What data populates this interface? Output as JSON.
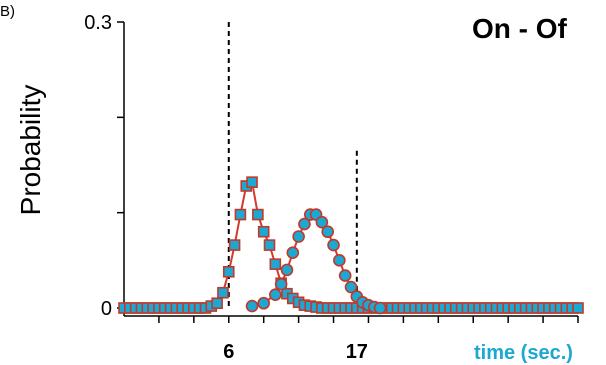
{
  "panel_label": "B)",
  "chart_data": {
    "type": "scatter",
    "title": "On - Of",
    "xlabel": "time (sec.)",
    "ylabel": "Probability",
    "xlim": [
      -3,
      36
    ],
    "ylim": [
      0,
      0.3
    ],
    "x_tick_labels": [
      {
        "value": 6,
        "label": "6"
      },
      {
        "value": 17,
        "label": "17"
      }
    ],
    "y_tick_labels": [
      {
        "value": 0,
        "label": "0"
      },
      {
        "value": 0.3,
        "label": "0.3"
      }
    ],
    "x_minor_ticks": [
      0,
      3,
      6,
      9,
      12,
      15,
      18,
      21,
      24,
      27,
      30,
      33,
      36
    ],
    "y_minor_ticks": [
      0,
      0.1,
      0.2,
      0.3
    ],
    "reference_lines": [
      {
        "x": 6,
        "y_top": 0.3
      },
      {
        "x": 17,
        "y_top": 0.165
      }
    ],
    "colors": {
      "marker_fill": "#1BA8D2",
      "marker_edge": "#C0392B",
      "fit_line": "#D23B2B"
    },
    "series": [
      {
        "marker": "square",
        "x": [
          -3,
          -2.5,
          -2,
          -1.5,
          -1,
          -0.5,
          0,
          0.5,
          1,
          1.5,
          2,
          2.5,
          3,
          3.5,
          4,
          4.5,
          5,
          5.5,
          6,
          6.5,
          7,
          7.5,
          8,
          8.5,
          9,
          9.5,
          10,
          10.5,
          11,
          11.5,
          12,
          12.5,
          13,
          13.5,
          14,
          14.5,
          15,
          15.5,
          16,
          16.5,
          17,
          17.5,
          18,
          18.5,
          19,
          19.5,
          20,
          20.5,
          21,
          21.5,
          22,
          22.5,
          23,
          23.5,
          24,
          24.5,
          25,
          25.5,
          26,
          26.5,
          27,
          27.5,
          28,
          28.5,
          29,
          29.5,
          30,
          30.5,
          31,
          31.5,
          32,
          32.5,
          33,
          33.5,
          34,
          34.5,
          35,
          35.5,
          36
        ],
        "y": [
          0,
          0,
          0,
          0,
          0,
          0,
          0,
          0,
          0,
          0,
          0,
          0,
          0,
          0,
          0,
          0.002,
          0.005,
          0.016,
          0.038,
          0.066,
          0.098,
          0.128,
          0.132,
          0.098,
          0.08,
          0.066,
          0.046,
          0.026,
          0.015,
          0.01,
          0.006,
          0.003,
          0.002,
          0.001,
          0,
          0,
          0,
          0,
          0,
          0,
          0,
          0,
          0,
          0,
          0,
          0,
          0,
          0,
          0,
          0,
          0,
          0,
          0,
          0,
          0,
          0,
          0,
          0,
          0,
          0,
          0,
          0,
          0,
          0,
          0,
          0,
          0,
          0,
          0,
          0,
          0,
          0,
          0,
          0,
          0,
          0,
          0,
          0,
          0
        ]
      },
      {
        "marker": "circle",
        "x": [
          8,
          9,
          10,
          10.5,
          11,
          11.5,
          12,
          12.5,
          13,
          13.5,
          14,
          14.5,
          15,
          15.5,
          16,
          16.5,
          17,
          17.5,
          18,
          18.5,
          19
        ],
        "y": [
          0.002,
          0.005,
          0.014,
          0.025,
          0.04,
          0.058,
          0.075,
          0.088,
          0.098,
          0.098,
          0.09,
          0.08,
          0.066,
          0.05,
          0.034,
          0.022,
          0.012,
          0.006,
          0.003,
          0.001,
          0
        ]
      }
    ]
  }
}
